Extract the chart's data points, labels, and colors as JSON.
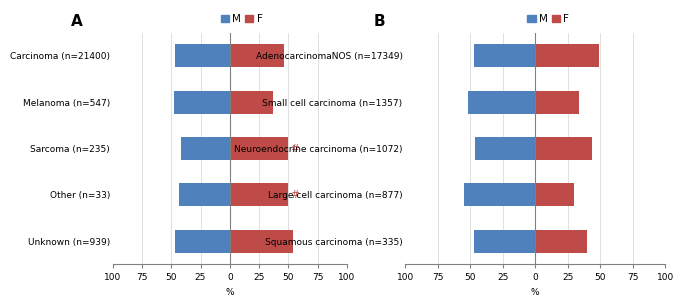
{
  "panel_A": {
    "title": "A",
    "categories": [
      "Carcinoma (n=21400)",
      "Melanoma (n=547)",
      "Sarcoma (n=235)",
      "Other (n=33)",
      "Unknown (n=939)"
    ],
    "male_vals": [
      47,
      48,
      42,
      43,
      47
    ],
    "female_vals": [
      46,
      37,
      50,
      50,
      54
    ],
    "annotations": [
      null,
      null,
      "#",
      "#",
      null
    ]
  },
  "panel_B": {
    "title": "B",
    "categories": [
      "AdenocarcinomaNOS (n=17349)",
      "Small cell carcinoma (n=1357)",
      "Neuroendocrine carcinoma (n=1072)",
      "Large cell carcinoma (n=877)",
      "Squamous carcinoma (n=335)"
    ],
    "male_vals": [
      47,
      52,
      46,
      55,
      47
    ],
    "female_vals": [
      49,
      34,
      44,
      30,
      40
    ],
    "annotations": [
      null,
      null,
      null,
      null,
      null
    ]
  },
  "xlim": 100,
  "xlabel": "%",
  "male_color": "#4f81bd",
  "female_color": "#be4b48",
  "legend_labels": [
    "M",
    "F"
  ],
  "bar_height": 0.5,
  "title_fontsize": 11,
  "tick_fontsize": 6.5,
  "label_fontsize": 6.5,
  "legend_fontsize": 7.5,
  "annot_fontsize": 7.5,
  "bg_color": "#f0f0f0"
}
